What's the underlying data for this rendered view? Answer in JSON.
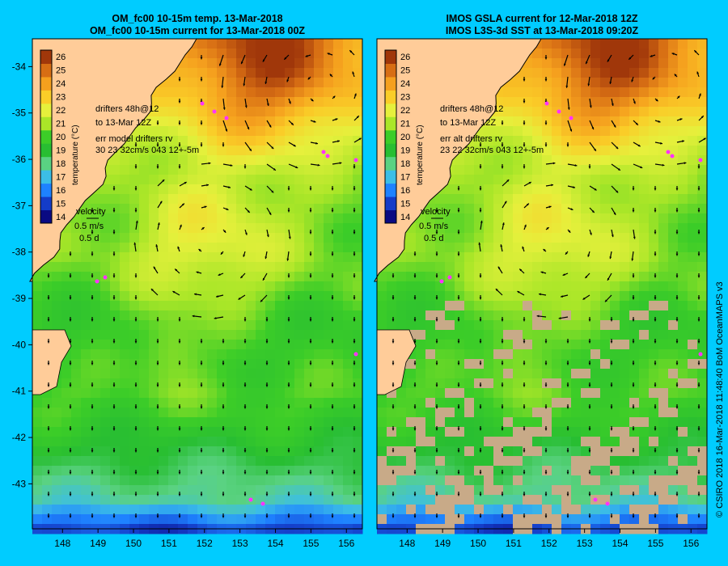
{
  "panels": [
    {
      "id": "model",
      "title_line1": "OM_fc00 10-15m temp. 13-Mar-2018",
      "title_line2": "OM_fc00 10-15m current for 13-Mar-2018 00Z",
      "drifters_line1": "drifters 48h@12",
      "drifters_line2": "to 13-Mar 12Z",
      "err_line1": "err model drifters rv",
      "err_line2": "30 23 32cm/s 043 12+-5m",
      "velocity_label": "velocity",
      "velocity_speed": "0.5 m/s",
      "velocity_time": "0.5 d",
      "colorbar_label": "temperature (°C)",
      "has_missing_data": false
    },
    {
      "id": "observed",
      "title_line1": "IMOS GSLA current for 12-Mar-2018 12Z",
      "title_line2": "IMOS L3S-3d SST at 13-Mar-2018 09:20Z",
      "drifters_line1": "drifters 48h@12",
      "drifters_line2": "to 13-Mar 12Z",
      "err_line1": "err alt drifters rv",
      "err_line2": "23 22 32cm/s 043 12+-5m",
      "velocity_label": "velocity",
      "velocity_speed": "0.5 m/s",
      "velocity_time": "0.5 d",
      "colorbar_label": "temperature (°C)",
      "has_missing_data": true
    }
  ],
  "colorbar_ticks": [
    "14",
    "15",
    "16",
    "17",
    "18",
    "19",
    "20",
    "21",
    "22",
    "23",
    "24",
    "25",
    "26"
  ],
  "lat_ticks": [
    "-34",
    "-35",
    "-36",
    "-37",
    "-38",
    "-39",
    "-40",
    "-41",
    "-42",
    "-43"
  ],
  "lon_ticks": [
    "148",
    "149",
    "150",
    "151",
    "152",
    "153",
    "154",
    "155",
    "156"
  ],
  "credit": "© CSIRO 2018    16-Mar-2018 11:48:40 BoM OceanMAPS v3",
  "colors": {
    "background": "#00ccff",
    "land": "#ffcc99",
    "missing": "#c8aa88",
    "drifter": "#ff33ff"
  }
}
